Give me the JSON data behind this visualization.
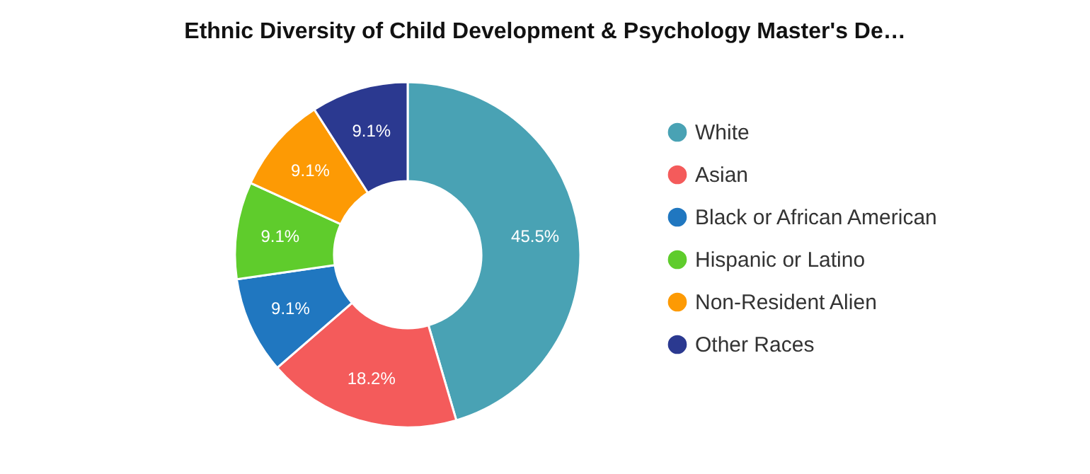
{
  "chart_data": {
    "type": "donut",
    "title": "Ethnic Diversity of Child Development & Psychology Master's De…",
    "categories": [
      "White",
      "Asian",
      "Black or African American",
      "Hispanic or Latino",
      "Non-Resident Alien",
      "Other Races"
    ],
    "values": [
      45.5,
      18.2,
      9.1,
      9.1,
      9.1,
      9.1
    ],
    "value_labels": [
      "45.5%",
      "18.2%",
      "9.1%",
      "9.1%",
      "9.1%",
      "9.1%"
    ],
    "colors": [
      "#49a2b4",
      "#f45b5b",
      "#2077c0",
      "#5fcc2c",
      "#fd9a04",
      "#2b3990"
    ],
    "legend": "right"
  }
}
